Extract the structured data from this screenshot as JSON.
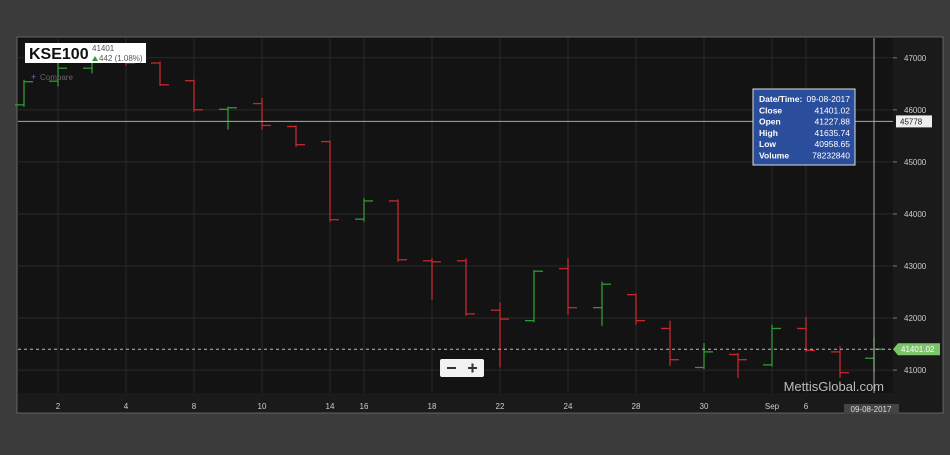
{
  "header": {
    "symbol": "KSE100",
    "last": "41401",
    "change": "442 (1.08%)",
    "compare": "Compare"
  },
  "watermark": "MettisGlobal.com",
  "tooltip": [
    {
      "label": "Date/Time:",
      "value": "09-08-2017"
    },
    {
      "label": "Close",
      "value": "41401.02"
    },
    {
      "label": "Open",
      "value": "41227.88"
    },
    {
      "label": "High",
      "value": "41635.74"
    },
    {
      "label": "Low",
      "value": "40958.65"
    },
    {
      "label": "Volume",
      "value": "78232840"
    }
  ],
  "chart_data": {
    "type": "ohlc",
    "categories": [
      null,
      "2",
      null,
      "4",
      null,
      "8",
      null,
      "10",
      null,
      "14",
      "16",
      null,
      "18",
      null,
      "22",
      null,
      "24",
      null,
      "28",
      null,
      "30",
      null,
      "Sep",
      "6",
      null,
      null
    ],
    "open": [
      46096,
      46550,
      46800,
      46950,
      46900,
      46560,
      46010,
      46120,
      45680,
      45390,
      43900,
      44250,
      43100,
      43100,
      42150,
      41950,
      42950,
      42200,
      42450,
      41800,
      41050,
      41300,
      41100,
      41800,
      41350,
      41227.88
    ],
    "high": [
      46577,
      46900,
      47050,
      47100,
      46930,
      46580,
      46060,
      46230,
      45700,
      45410,
      44300,
      44280,
      43150,
      43150,
      42300,
      42920,
      43150,
      42700,
      42470,
      41950,
      41520,
      41330,
      41870,
      42020,
      41460,
      41635.74
    ],
    "low": [
      46058,
      46450,
      46700,
      46850,
      46460,
      45960,
      45620,
      45620,
      45290,
      43850,
      43850,
      43080,
      42350,
      42040,
      41050,
      41920,
      42060,
      41850,
      41870,
      41080,
      41020,
      40850,
      41070,
      41350,
      40850,
      40958.65
    ],
    "close": [
      46540,
      46800,
      46950,
      46900,
      46480,
      46000,
      46040,
      45700,
      45330,
      43890,
      44250,
      43120,
      43080,
      42080,
      41980,
      42900,
      42200,
      42650,
      41950,
      41200,
      41350,
      41200,
      41800,
      41380,
      40950,
      41401.02
    ],
    "up_color": "#2f9a34",
    "down_color": "#c6282e",
    "ylim": [
      40560,
      47380
    ],
    "yticks": [
      41000,
      42000,
      43000,
      44000,
      45000,
      46000,
      47000
    ],
    "grid": true,
    "crosshair": {
      "y": 45778,
      "x_label": "09-08-2017"
    }
  }
}
